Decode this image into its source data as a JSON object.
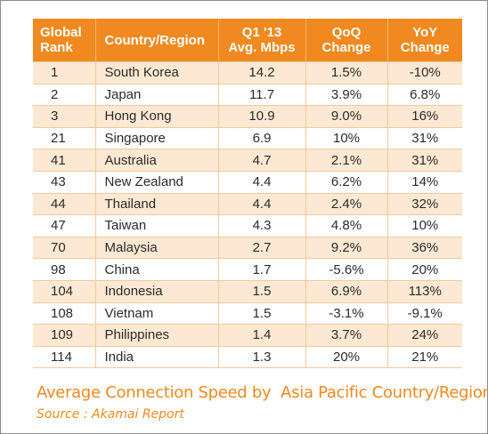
{
  "chart_data": {
    "type": "table",
    "title": "Average Connection Speed by  Asia Pacific Country/Region",
    "source": "Source : Akamai Report",
    "columns": [
      [
        "Global",
        "Rank"
      ],
      [
        "Country/Region"
      ],
      [
        "Q1 '13",
        "Avg. Mbps"
      ],
      [
        "QoQ",
        "Change"
      ],
      [
        "YoY",
        "Change"
      ]
    ],
    "rows": [
      [
        "1",
        "South Korea",
        "14.2",
        "1.5%",
        "-10%"
      ],
      [
        "2",
        "Japan",
        "11.7",
        "3.9%",
        "6.8%"
      ],
      [
        "3",
        "Hong Kong",
        "10.9",
        "9.0%",
        "16%"
      ],
      [
        "21",
        "Singapore",
        "6.9",
        "10%",
        "31%"
      ],
      [
        "41",
        "Australia",
        "4.7",
        "2.1%",
        "31%"
      ],
      [
        "43",
        "New Zealand",
        "4.4",
        "6.2%",
        "14%"
      ],
      [
        "44",
        "Thailand",
        "4.4",
        "2.4%",
        "32%"
      ],
      [
        "47",
        "Taiwan",
        "4.3",
        "4.8%",
        "10%"
      ],
      [
        "70",
        "Malaysia",
        "2.7",
        "9.2%",
        "36%"
      ],
      [
        "98",
        "China",
        "1.7",
        "-5.6%",
        "20%"
      ],
      [
        "104",
        "Indonesia",
        "1.5",
        "6.9%",
        "113%"
      ],
      [
        "108",
        "Vietnam",
        "1.5",
        "-3.1%",
        "-9.1%"
      ],
      [
        "109",
        "Philippines",
        "1.4",
        "3.7%",
        "24%"
      ],
      [
        "114",
        "India",
        "1.3",
        "20%",
        "21%"
      ]
    ],
    "colors": {
      "header_bg": "#f0891f",
      "header_text": "#ffffff",
      "row_shade": "#fde9d3",
      "caption": "#f0891f"
    }
  }
}
